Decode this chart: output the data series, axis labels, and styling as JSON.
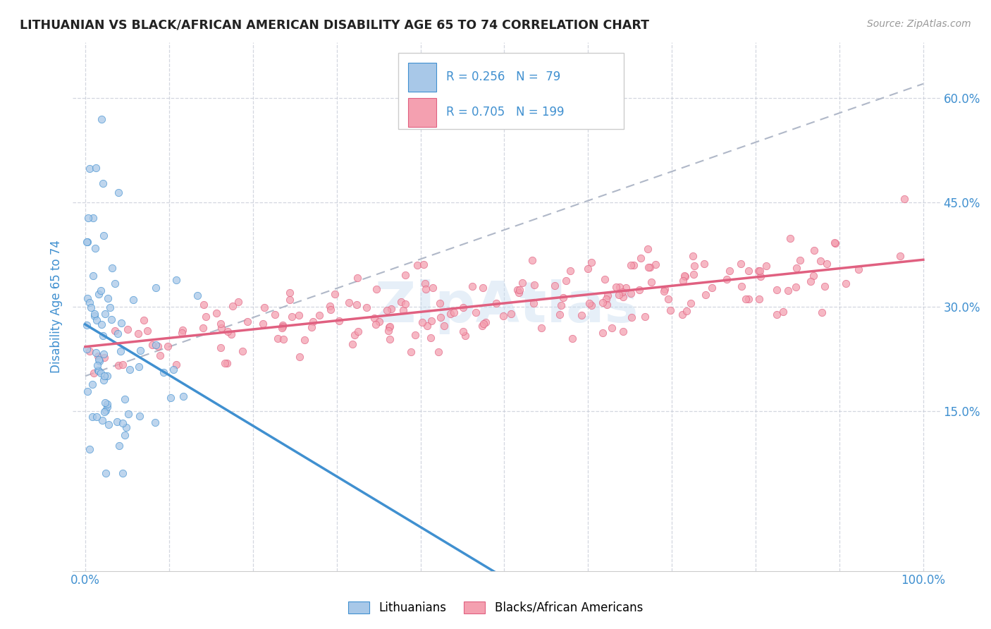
{
  "title": "LITHUANIAN VS BLACK/AFRICAN AMERICAN DISABILITY AGE 65 TO 74 CORRELATION CHART",
  "source": "Source: ZipAtlas.com",
  "ylabel": "Disability Age 65 to 74",
  "legend_r1": "0.256",
  "legend_n1": "79",
  "legend_r2": "0.705",
  "legend_n2": "199",
  "color_blue_fill": "#a8c8e8",
  "color_pink_fill": "#f4a0b0",
  "color_blue_line": "#4090d0",
  "color_pink_line": "#e06080",
  "color_dashed": "#b0b8c8",
  "watermark": "ZipAtlas",
  "background_color": "#ffffff",
  "grid_color": "#c8cdd8",
  "title_color": "#222222",
  "axis_color": "#4090d0",
  "source_color": "#999999",
  "scatter_alpha": 0.75,
  "scatter_size": 55,
  "xlim_min": -0.015,
  "xlim_max": 1.02,
  "ylim_min": -0.08,
  "ylim_max": 0.68
}
